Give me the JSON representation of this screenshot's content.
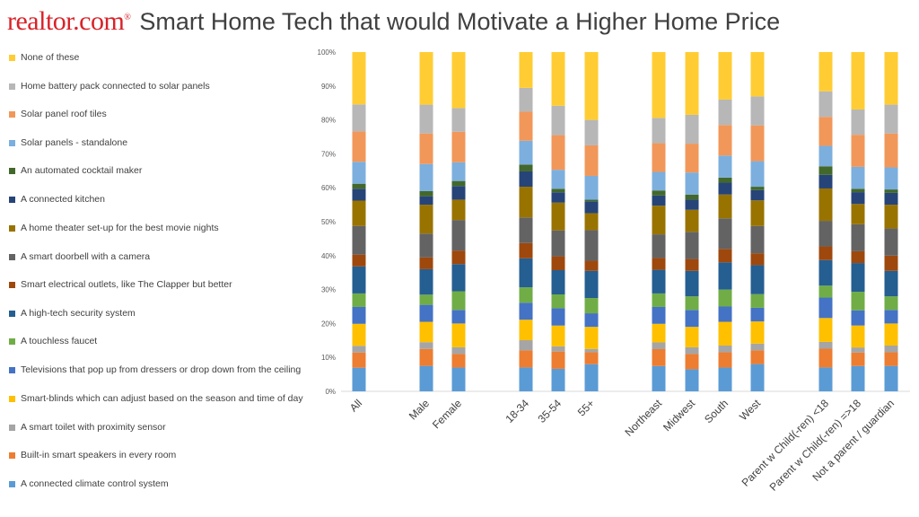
{
  "header": {
    "logo": "realtor.com",
    "logo_mark": "®",
    "title": "Smart Home Tech that would Motivate a Higher Home Price"
  },
  "chart_data": {
    "type": "bar",
    "stacked": true,
    "normalized": true,
    "title": "Smart Home Tech that would Motivate a Higher Home Price",
    "ylim": [
      0,
      100
    ],
    "yticks": [
      "0%",
      "10%",
      "20%",
      "30%",
      "40%",
      "50%",
      "60%",
      "70%",
      "80%",
      "90%",
      "100%"
    ],
    "legend_position": "left",
    "categories": [
      "All",
      "Male",
      "Female",
      "18-34",
      "35-54",
      "55+",
      "Northeast",
      "Midwest",
      "South",
      "West",
      "Parent w Child(-ren) <18",
      "Parent w Child(-ren) =>18",
      "Not a parent / guardian"
    ],
    "category_groups": [
      [
        0
      ],
      [
        1,
        2
      ],
      [
        3,
        4,
        5
      ],
      [
        6,
        7,
        8,
        9
      ],
      [
        10,
        11,
        12
      ]
    ],
    "series": [
      {
        "name": "A connected climate control system",
        "color": "#5b9bd5",
        "values": [
          7,
          7.5,
          7,
          7,
          6.5,
          8,
          7.5,
          6.5,
          7,
          8,
          7,
          7.5,
          7.5
        ]
      },
      {
        "name": "Built-in smart speakers in every room",
        "color": "#ed7d31",
        "values": [
          4.5,
          5,
          4,
          5,
          5,
          3.5,
          5,
          4.5,
          4.5,
          4,
          5.5,
          4,
          4
        ]
      },
      {
        "name": "A smart toilet with proximity sensor",
        "color": "#a5a5a5",
        "values": [
          2,
          2,
          2,
          3,
          1.5,
          1,
          2,
          2,
          2,
          2,
          2,
          1.5,
          2
        ]
      },
      {
        "name": "Smart-blinds which can adjust based on the season and time of day",
        "color": "#ffc000",
        "values": [
          6.5,
          6,
          7,
          6,
          6,
          6.5,
          5.5,
          6,
          7,
          6.5,
          7,
          6.5,
          6.5
        ]
      },
      {
        "name": "Televisions that pop up from dressers or drop down from the ceiling",
        "color": "#4472c4",
        "values": [
          5,
          5,
          4,
          5,
          5,
          4,
          5,
          5,
          4.5,
          4,
          6,
          4.5,
          4
        ]
      },
      {
        "name": "A touchless faucet",
        "color": "#70ad47",
        "values": [
          4,
          3,
          5.5,
          4.5,
          4,
          4.5,
          4,
          4,
          5,
          4,
          3.5,
          5.5,
          4
        ]
      },
      {
        "name": "A high-tech security system",
        "color": "#255e91",
        "values": [
          8,
          7.5,
          8,
          8.5,
          7,
          8,
          7,
          7.5,
          8,
          8.5,
          7.5,
          8.5,
          7.5
        ]
      },
      {
        "name": "Smart electrical outlets, like The Clapper but better",
        "color": "#9e480e",
        "values": [
          3.5,
          3.5,
          4,
          4.5,
          4,
          3,
          3.5,
          3.5,
          4,
          3.5,
          4,
          3.5,
          4.5
        ]
      },
      {
        "name": "A smart doorbell with a camera",
        "color": "#636363",
        "values": [
          8.5,
          7,
          9,
          7.5,
          7.5,
          9,
          7,
          8,
          9,
          8,
          7.5,
          8,
          8
        ]
      },
      {
        "name": "A home theater set-up for the best movie nights",
        "color": "#997300",
        "values": [
          7.5,
          8.5,
          6,
          9,
          8,
          5,
          8.5,
          6.5,
          7,
          7.5,
          9.5,
          6,
          7
        ]
      },
      {
        "name": "A connected kitchen",
        "color": "#264478",
        "values": [
          3.5,
          2.5,
          4,
          4.5,
          3,
          3.5,
          3,
          3,
          3.5,
          3,
          4,
          3.5,
          3.5
        ]
      },
      {
        "name": "An automated cocktail maker",
        "color": "#43682b",
        "values": [
          1.5,
          1.5,
          1.5,
          2,
          1,
          0.5,
          1.5,
          1.5,
          1.5,
          1,
          2.5,
          1,
          1
        ]
      },
      {
        "name": "Solar panels - standalone",
        "color": "#7cafdd",
        "values": [
          6.5,
          8,
          5.5,
          7,
          5.5,
          7,
          5.5,
          6.5,
          6.5,
          7.5,
          6,
          6.5,
          6.5
        ]
      },
      {
        "name": "Solar panel roof tiles",
        "color": "#f1975a",
        "values": [
          9,
          9,
          9,
          8.5,
          10,
          9,
          8.5,
          8.5,
          9,
          10.5,
          8.5,
          9.5,
          10
        ]
      },
      {
        "name": "Home battery pack connected to solar panels",
        "color": "#b7b7b7",
        "values": [
          8,
          8.5,
          7,
          7,
          8.5,
          7.5,
          7.5,
          8.5,
          7.5,
          8.5,
          7.5,
          7.5,
          8.5
        ]
      },
      {
        "name": "None of these",
        "color": "#ffcd33",
        "values": [
          15.5,
          15.5,
          16.5,
          10.5,
          15.5,
          20,
          19.5,
          18.5,
          14,
          13,
          11.5,
          17,
          15.5
        ]
      }
    ],
    "legend_order": [
      15,
      14,
      13,
      12,
      11,
      10,
      9,
      8,
      7,
      6,
      5,
      4,
      3,
      2,
      1,
      0
    ]
  }
}
